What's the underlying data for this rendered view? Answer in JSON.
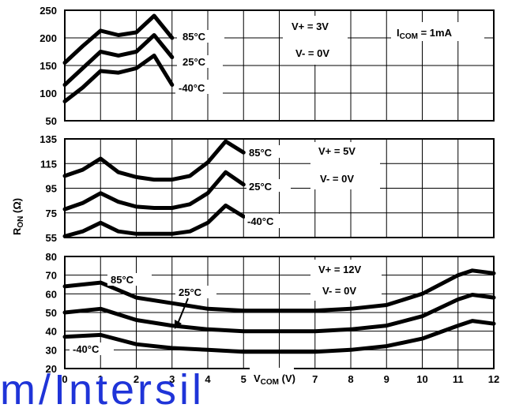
{
  "watermark": "m/Intersil",
  "chart_data": [
    {
      "type": "line",
      "x_ticks": [
        "0",
        "1",
        "2",
        "3",
        "4",
        "5",
        "6",
        "7",
        "8",
        "9",
        "10",
        "11",
        "12"
      ],
      "y_ticks": [
        "250",
        "200",
        "150",
        "100",
        "50"
      ],
      "ylim": [
        50,
        250
      ],
      "xlim": [
        0,
        12
      ],
      "grid": true,
      "annotations": [
        "V+ = 3V",
        "V- = 0V",
        "I_COM = 1mA"
      ],
      "series": [
        {
          "name": "85°C",
          "x": [
            0,
            0.5,
            1,
            1.5,
            2,
            2.5,
            3
          ],
          "values": [
            155,
            185,
            213,
            205,
            210,
            240,
            200
          ]
        },
        {
          "name": "25°C",
          "x": [
            0,
            0.5,
            1,
            1.5,
            2,
            2.5,
            3
          ],
          "values": [
            115,
            145,
            175,
            168,
            175,
            205,
            165
          ]
        },
        {
          "name": "-40°C",
          "x": [
            0,
            0.5,
            1,
            1.5,
            2,
            2.5,
            3
          ],
          "values": [
            85,
            110,
            140,
            137,
            145,
            168,
            115
          ]
        }
      ]
    },
    {
      "type": "line",
      "y_ticks": [
        "135",
        "115",
        "95",
        "75",
        "55"
      ],
      "ylim": [
        55,
        135
      ],
      "xlim": [
        0,
        12
      ],
      "grid": true,
      "annotations": [
        "V+ = 5V",
        "V- = 0V"
      ],
      "ylabel": "RON (Ω)",
      "series": [
        {
          "name": "85°C",
          "x": [
            0,
            0.5,
            1,
            1.5,
            2,
            2.5,
            3,
            3.5,
            4,
            4.5,
            5
          ],
          "values": [
            105,
            110,
            119,
            108,
            104,
            102,
            102,
            105,
            116,
            133,
            124
          ]
        },
        {
          "name": "25°C",
          "x": [
            0,
            0.5,
            1,
            1.5,
            2,
            2.5,
            3,
            3.5,
            4,
            4.5,
            5
          ],
          "values": [
            78,
            83,
            91,
            84,
            80,
            79,
            79,
            82,
            91,
            108,
            98
          ]
        },
        {
          "name": "-40°C",
          "x": [
            0,
            0.5,
            1,
            1.5,
            2,
            2.5,
            3,
            3.5,
            4,
            4.5,
            5
          ],
          "values": [
            56,
            60,
            67,
            60,
            58,
            58,
            58,
            60,
            67,
            81,
            72
          ]
        }
      ]
    },
    {
      "type": "line",
      "y_ticks": [
        "80",
        "70",
        "60",
        "50",
        "40",
        "30",
        "20"
      ],
      "ylim": [
        20,
        80
      ],
      "xlim": [
        0,
        12
      ],
      "grid": true,
      "annotations": [
        "V+ = 12V",
        "V- = 0V"
      ],
      "xlabel": "VCOM (V)",
      "series": [
        {
          "name": "85°C",
          "x": [
            0,
            1,
            2,
            3,
            4,
            5,
            6,
            7,
            8,
            9,
            10,
            11,
            11.4,
            12
          ],
          "values": [
            64,
            66,
            58,
            55,
            52,
            51,
            51,
            51,
            52,
            54,
            60,
            70,
            72.5,
            71
          ]
        },
        {
          "name": "25°C",
          "x": [
            0,
            1,
            2,
            3,
            4,
            5,
            6,
            7,
            8,
            9,
            10,
            11,
            11.4,
            12
          ],
          "values": [
            50,
            52,
            46,
            43,
            41,
            40,
            40,
            40,
            41,
            43,
            48,
            57,
            59.5,
            58
          ]
        },
        {
          "name": "-40°C",
          "x": [
            0,
            1,
            2,
            3,
            4,
            5,
            6,
            7,
            8,
            9,
            10,
            11,
            11.4,
            12
          ],
          "values": [
            37,
            38,
            33,
            31,
            30,
            29,
            29,
            29,
            30,
            32,
            36,
            43,
            45.5,
            44
          ]
        }
      ]
    }
  ]
}
